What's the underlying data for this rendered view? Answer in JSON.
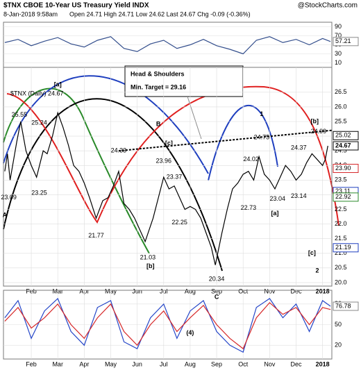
{
  "header": {
    "title": "$TNX CBOE 10-Year US Treasury Yield INDX",
    "source": "@StockCharts.com",
    "date": "8-Jan-2018 9:58am",
    "quote": "Open 24.71  High 24.71  Low 24.62  Last 24.67  Chg -0.09 (-0.36%)"
  },
  "callout": {
    "line1": "Head & Shoulders",
    "line2": "Min. Target = 29.16"
  },
  "chart_data": [
    {
      "type": "line",
      "xlim": [
        -0.05,
        12.35
      ],
      "ylim": [
        0,
        100
      ],
      "yticks": [
        10,
        30,
        50,
        70,
        90
      ],
      "series": [
        {
          "name": "RSI(14)",
          "color": "#334e8c",
          "x": [
            0,
            0.5,
            1,
            1.5,
            2,
            2.5,
            3,
            3.5,
            4,
            4.5,
            5,
            5.5,
            6,
            6.5,
            7,
            7.5,
            8,
            8.5,
            9,
            9.5,
            10,
            10.5,
            11,
            11.5,
            12,
            12.3
          ],
          "values": [
            55,
            62,
            48,
            58,
            66,
            52,
            45,
            60,
            68,
            42,
            35,
            52,
            60,
            42,
            50,
            62,
            48,
            40,
            30,
            60,
            68,
            55,
            62,
            50,
            64,
            57.21
          ]
        }
      ],
      "last_label": 57.21
    },
    {
      "type": "line",
      "legend": "$TNX (Daily) 24.67",
      "xlim": [
        -0.05,
        12.35
      ],
      "ylim": [
        19.88,
        27.35
      ],
      "yticks": [
        {
          "value": 20,
          "label": "20.0"
        },
        20.5,
        {
          "value": 21,
          "label": "21.0"
        },
        21.5,
        {
          "value": 22,
          "label": "22.0"
        },
        22.5,
        {
          "value": 23,
          "label": "23.0"
        },
        23.5,
        {
          "value": 24,
          "label": "24.0"
        },
        24.5,
        {
          "value": 25,
          "label": "25.0"
        },
        25.5,
        {
          "value": 26,
          "label": "26.0"
        },
        26.5
      ],
      "xticks": [
        {
          "value": 1,
          "label": "Feb"
        },
        {
          "value": 2,
          "label": "Mar"
        },
        {
          "value": 3,
          "label": "Apr"
        },
        {
          "value": 4,
          "label": "May"
        },
        {
          "value": 5,
          "label": "Jun"
        },
        {
          "value": 6,
          "label": "Jul"
        },
        {
          "value": 7,
          "label": "Aug"
        },
        {
          "value": 8,
          "label": "Sep"
        },
        {
          "value": 9,
          "label": "Oct"
        },
        {
          "value": 10,
          "label": "Nov"
        },
        {
          "value": 11,
          "label": "Dec"
        },
        {
          "value": 12,
          "label": "2018"
        }
      ],
      "series": [
        {
          "name": "$TNX",
          "color": "#000000",
          "x": [
            0,
            0.1,
            0.2,
            0.45,
            0.6,
            0.8,
            1.0,
            1.2,
            1.45,
            1.6,
            1.8,
            2.0,
            2.2,
            2.4,
            2.6,
            2.8,
            3.0,
            3.2,
            3.45,
            3.7,
            3.9,
            4.1,
            4.3,
            4.5,
            4.7,
            4.9,
            5.1,
            5.3,
            5.6,
            5.8,
            6.0,
            6.2,
            6.4,
            6.6,
            6.8,
            7.0,
            7.2,
            7.4,
            7.6,
            7.8,
            7.95,
            8.2,
            8.4,
            8.6,
            8.8,
            9.0,
            9.2,
            9.4,
            9.6,
            9.8,
            10.0,
            10.2,
            10.4,
            10.6,
            10.8,
            11.0,
            11.2,
            11.4,
            11.6,
            11.8,
            12.0,
            12.1,
            12.2
          ],
          "values": [
            23.8,
            24.4,
            23.5,
            24.8,
            25.5,
            24.5,
            24.0,
            23.6,
            24.5,
            24.4,
            25.0,
            25.8,
            25.3,
            24.7,
            24.0,
            23.8,
            23.4,
            22.9,
            22.2,
            22.8,
            22.9,
            23.3,
            23.8,
            22.7,
            22.5,
            22.2,
            21.8,
            21.4,
            22.2,
            22.9,
            23.6,
            23.2,
            23.3,
            22.9,
            22.5,
            22.6,
            22.5,
            22.2,
            21.7,
            21.2,
            20.6,
            21.7,
            22.5,
            23.2,
            23.4,
            23.7,
            23.8,
            23.5,
            24.3,
            23.7,
            23.5,
            23.2,
            23.6,
            24.0,
            23.8,
            23.5,
            23.7,
            24.1,
            24.4,
            24.2,
            24.0,
            24.2,
            24.67
          ]
        },
        {
          "name": "Neckline",
          "color": "#000000",
          "dashed": true,
          "x": [
            4.3,
            12.35
          ],
          "values": [
            24.5,
            25.2
          ]
        }
      ],
      "price_labels": [
        25.02,
        24.67,
        {
          "value": 23.9,
          "label": "23.90"
        },
        23.11,
        22.92,
        21.19
      ],
      "price_label_colors": [
        "#000000",
        "#000000",
        "#d62728",
        "#1f3fbf",
        "#2a8a2a",
        "#1f3fbf"
      ],
      "annotations": [
        {
          "text": "25.55",
          "x": 0.55,
          "y": 25.72,
          "color": "#000000"
        },
        {
          "text": "25.24",
          "x": 1.3,
          "y": 25.45,
          "color": "#000000"
        },
        {
          "text": "23.09",
          "x": 0.15,
          "y": 22.9,
          "color": "#000000"
        },
        {
          "text": "23.25",
          "x": 1.3,
          "y": 23.05,
          "color": "#000000"
        },
        {
          "text": "21.77",
          "x": 3.45,
          "y": 21.6,
          "color": "#000000"
        },
        {
          "text": "24.33",
          "x": 4.3,
          "y": 24.5,
          "color": "#000000"
        },
        {
          "text": "21.03",
          "x": 5.4,
          "y": 20.85,
          "color": "#000000"
        },
        {
          "text": "23.96",
          "x": 6.0,
          "y": 24.15,
          "color": "#000000"
        },
        {
          "text": "23.37",
          "x": 6.4,
          "y": 23.6,
          "color": "#000000"
        },
        {
          "text": "22.25",
          "x": 6.6,
          "y": 22.05,
          "color": "#000000"
        },
        {
          "text": "20.34",
          "x": 8.0,
          "y": 20.12,
          "color": "#000000"
        },
        {
          "text": "22.73",
          "x": 9.2,
          "y": 22.55,
          "color": "#000000"
        },
        {
          "text": "24.02",
          "x": 9.3,
          "y": 24.2,
          "color": "#000000"
        },
        {
          "text": "24.75",
          "x": 9.7,
          "y": 24.95,
          "color": "#000000"
        },
        {
          "text": "23.04",
          "x": 10.3,
          "y": 22.85,
          "color": "#000000"
        },
        {
          "text": "24.37",
          "x": 11.1,
          "y": 24.6,
          "color": "#000000"
        },
        {
          "text": "23.14",
          "x": 11.1,
          "y": 22.95,
          "color": "#000000"
        },
        {
          "text": "24.99",
          "x": 11.85,
          "y": 25.15,
          "color": "#000000"
        },
        {
          "text": "[a]",
          "x": 2.0,
          "y": 26.75,
          "color": "#d62728"
        },
        {
          "text": "B",
          "x": 5.8,
          "y": 25.4,
          "color": "#7b2fbf"
        },
        {
          "text": "[c]",
          "x": 6.2,
          "y": 24.75,
          "color": "#d62728"
        },
        {
          "text": "[b]",
          "x": 5.5,
          "y": 20.55,
          "color": "#d62728"
        },
        {
          "text": "A",
          "x": 0.0,
          "y": 22.3,
          "color": "#7b2fbf"
        },
        {
          "text": "1",
          "x": 9.7,
          "y": 25.75,
          "color": "#7b2fbf"
        },
        {
          "text": "[a]",
          "x": 10.2,
          "y": 22.35,
          "color": "#d62728"
        },
        {
          "text": "[b]",
          "x": 11.7,
          "y": 25.5,
          "color": "#d62728"
        },
        {
          "text": "[c]",
          "x": 11.6,
          "y": 21.0,
          "color": "#d62728"
        },
        {
          "text": "2",
          "x": 11.8,
          "y": 20.4,
          "color": "#7b2fbf"
        }
      ]
    },
    {
      "type": "line",
      "xlim": [
        -0.05,
        12.35
      ],
      "ylim": [
        0,
        100
      ],
      "yticks": [
        20,
        50,
        80
      ],
      "xticks": [
        {
          "value": 1,
          "label": "Feb"
        },
        {
          "value": 2,
          "label": "Mar"
        },
        {
          "value": 3,
          "label": "Apr"
        },
        {
          "value": 4,
          "label": "May"
        },
        {
          "value": 5,
          "label": "Jun"
        },
        {
          "value": 6,
          "label": "Jul"
        },
        {
          "value": 7,
          "label": "Aug"
        },
        {
          "value": 8,
          "label": "Sep"
        },
        {
          "value": 9,
          "label": "Oct"
        },
        {
          "value": 10,
          "label": "Nov"
        },
        {
          "value": 11,
          "label": "Dec"
        },
        {
          "value": 12,
          "label": "2018"
        }
      ],
      "series": [
        {
          "name": "Fast",
          "color": "#2546c8",
          "x": [
            0,
            0.5,
            1,
            1.5,
            2,
            2.5,
            3,
            3.5,
            4,
            4.5,
            5,
            5.5,
            6,
            6.5,
            7,
            7.5,
            8,
            8.5,
            9,
            9.5,
            10,
            10.5,
            11,
            11.5,
            12,
            12.3
          ],
          "values": [
            60,
            85,
            30,
            70,
            88,
            40,
            20,
            75,
            85,
            25,
            15,
            60,
            80,
            30,
            70,
            85,
            40,
            20,
            10,
            75,
            88,
            60,
            80,
            40,
            85,
            76.78
          ]
        },
        {
          "name": "Slow",
          "color": "#d62728",
          "x": [
            0,
            0.5,
            1,
            1.5,
            2,
            2.5,
            3,
            3.5,
            4,
            4.5,
            5,
            5.5,
            6,
            6.5,
            7,
            7.5,
            8,
            8.5,
            9,
            9.5,
            10,
            10.5,
            11,
            11.5,
            12,
            12.3
          ],
          "values": [
            55,
            75,
            45,
            60,
            80,
            50,
            30,
            60,
            80,
            40,
            20,
            50,
            70,
            40,
            60,
            78,
            50,
            30,
            15,
            60,
            82,
            65,
            75,
            50,
            75,
            72
          ]
        }
      ],
      "last_label": 76.78,
      "annotations": [
        {
          "text": "(4)",
          "x": 7.0,
          "y": 38,
          "color": "#000000"
        },
        {
          "text": "C",
          "x": 8.0,
          "y": 90,
          "color": "#7b2fbf"
        }
      ]
    }
  ]
}
